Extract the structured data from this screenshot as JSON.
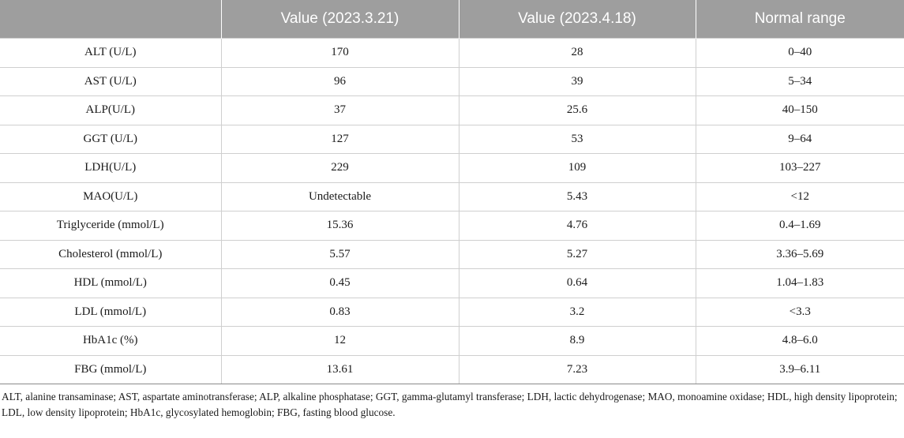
{
  "table": {
    "headers": [
      "",
      "Value (2023.3.21)",
      "Value (2023.4.18)",
      "Normal range"
    ],
    "rows": [
      [
        "ALT (U/L)",
        "170",
        "28",
        "0–40"
      ],
      [
        "AST (U/L)",
        "96",
        "39",
        "5–34"
      ],
      [
        "ALP(U/L)",
        "37",
        "25.6",
        "40–150"
      ],
      [
        "GGT (U/L)",
        "127",
        "53",
        "9–64"
      ],
      [
        "LDH(U/L)",
        "229",
        "109",
        "103–227"
      ],
      [
        "MAO(U/L)",
        "Undetectable",
        "5.43",
        "<12"
      ],
      [
        "Triglyceride (mmol/L)",
        "15.36",
        "4.76",
        "0.4–1.69"
      ],
      [
        "Cholesterol (mmol/L)",
        "5.57",
        "5.27",
        "3.36–5.69"
      ],
      [
        "HDL (mmol/L)",
        "0.45",
        "0.64",
        "1.04–1.83"
      ],
      [
        "LDL (mmol/L)",
        "0.83",
        "3.2",
        "<3.3"
      ],
      [
        "HbA1c (%)",
        "12",
        "8.9",
        "4.8–6.0"
      ],
      [
        "FBG (mmol/L)",
        "13.61",
        "7.23",
        "3.9–6.11"
      ]
    ]
  },
  "footnote": "ALT, alanine transaminase; AST, aspartate aminotransferase; ALP, alkaline phosphatase; GGT, gamma-glutamyl transferase; LDH, lactic dehydrogenase; MAO, monoamine oxidase; HDL, high density lipoprotein; LDL, low density lipoprotein; HbA1c, glycosylated hemoglobin; FBG, fasting blood glucose.",
  "colors": {
    "header_bg": "#9e9e9e",
    "header_text": "#ffffff",
    "grid": "#cfcfcf"
  }
}
